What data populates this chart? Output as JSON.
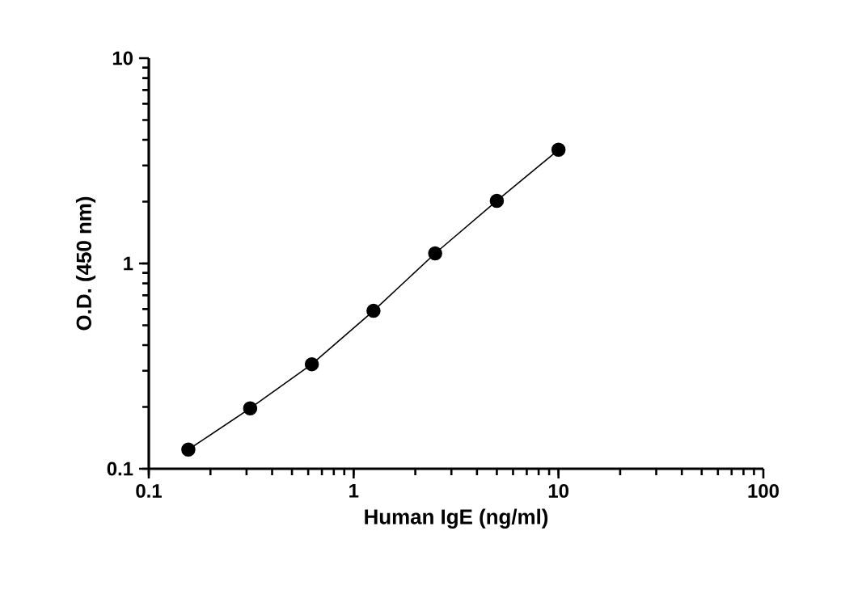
{
  "chart_data": {
    "type": "line",
    "xlabel": "Human IgE (ng/ml)",
    "ylabel": "O.D. (450 nm)",
    "log": "xy",
    "xlim": [
      0.1,
      100
    ],
    "ylim": [
      0.1,
      10
    ],
    "xticks": [
      0.1,
      1,
      10,
      100
    ],
    "yticks": [
      0.1,
      1,
      10
    ],
    "marker": "circle",
    "line_style": "solid",
    "grid": false,
    "series": [
      {
        "color": "#000000",
        "x": [
          0.156,
          0.3125,
          0.625,
          1.25,
          2.5,
          5,
          10
        ],
        "values": [
          0.124,
          0.197,
          0.323,
          0.588,
          1.12,
          2.02,
          3.58
        ]
      }
    ]
  }
}
